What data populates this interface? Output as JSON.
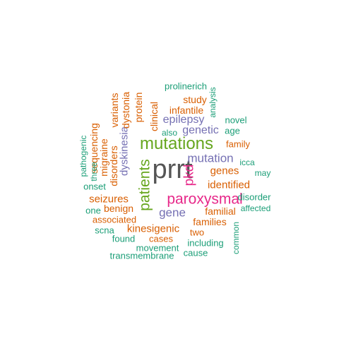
{
  "colors": {
    "green": "#1b9e77",
    "orange": "#d95f02",
    "purple": "#7570b3",
    "magenta": "#e7298a",
    "lime": "#66a61e",
    "gray": "#555555"
  },
  "words": {
    "prrt": "prrt",
    "mutations": "mutations",
    "paroxysmal": "paroxysmal",
    "patients": "patients",
    "pkd": "pkd",
    "mutation": "mutation",
    "gene": "gene",
    "epilepsy": "epilepsy",
    "genetic": "genetic",
    "kinesigenic": "kinesigenic",
    "seizures": "seizures",
    "dyskinesia": "dyskinesia",
    "identified": "identified",
    "genes": "genes",
    "infantile": "infantile",
    "families": "families",
    "familial": "familial",
    "benign": "benign",
    "disorders": "disorders",
    "migraine": "migraine",
    "dystonia": "dystonia",
    "variants": "variants",
    "sequencing": "sequencing",
    "protein": "protein",
    "clinical": "clinical",
    "study": "study",
    "associated": "associated",
    "cases": "cases",
    "two": "two",
    "family": "family",
    "movement": "movement",
    "including": "including",
    "transmembrane": "transmembrane",
    "cause": "cause",
    "common": "common",
    "disorder": "disorder",
    "affected": "affected",
    "icca": "icca",
    "may": "may",
    "novel": "novel",
    "age": "age",
    "also": "also",
    "analysis": "analysis",
    "prolinerich": "prolinerich",
    "pathogenic": "pathogenic",
    "three": "three",
    "onset": "onset",
    "one": "one",
    "scna": "scna",
    "found": "found"
  }
}
